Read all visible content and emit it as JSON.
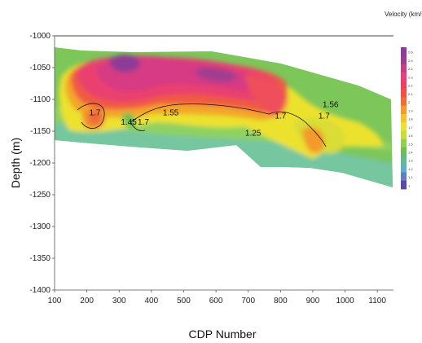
{
  "chart_data": {
    "type": "heatmap",
    "xlabel": "CDP Number",
    "ylabel": "Depth (m)",
    "x_ticks": [
      "100",
      "200",
      "300",
      "400",
      "500",
      "600",
      "700",
      "800",
      "900",
      "1000",
      "1100"
    ],
    "y_ticks": [
      "-1000",
      "-1050",
      "-1100",
      "-1150",
      "-1200",
      "-1250",
      "-1300",
      "-1350",
      "-1400"
    ],
    "xlim": [
      100,
      1150
    ],
    "ylim": [
      -1400,
      -1000
    ],
    "colorbar_title": "Velocity (km/s)",
    "colorbar_ticks": [
      "2.6",
      "2.5",
      "2.4",
      "2.3",
      "2.2",
      "2.1",
      "2",
      "1.9",
      "1.8",
      "1.7",
      "1.6",
      "1.5",
      "1.4",
      "1.3",
      "1.2",
      "1.1",
      "1"
    ],
    "colorbar_colors": [
      "#8a3aa0",
      "#9b3c8c",
      "#c83b87",
      "#e8407a",
      "#f04060",
      "#f25045",
      "#f46a3a",
      "#f39a2a",
      "#f2c52a",
      "#e9e22e",
      "#c8de35",
      "#95d04a",
      "#6dbf55",
      "#64b995",
      "#5cb1c2",
      "#5f7fc2",
      "#5a47a8"
    ],
    "contour_labels": [
      {
        "text": "1.7",
        "cdp": 225,
        "depth": -1125
      },
      {
        "text": "1.45",
        "cdp": 330,
        "depth": -1140
      },
      {
        "text": "1.7",
        "cdp": 375,
        "depth": -1140
      },
      {
        "text": "1.55",
        "cdp": 460,
        "depth": -1125
      },
      {
        "text": "1.25",
        "cdp": 715,
        "depth": -1157
      },
      {
        "text": "1.7",
        "cdp": 800,
        "depth": -1130
      },
      {
        "text": "1.56",
        "cdp": 955,
        "depth": -1112
      },
      {
        "text": "1.7",
        "cdp": 935,
        "depth": -1130
      }
    ]
  }
}
